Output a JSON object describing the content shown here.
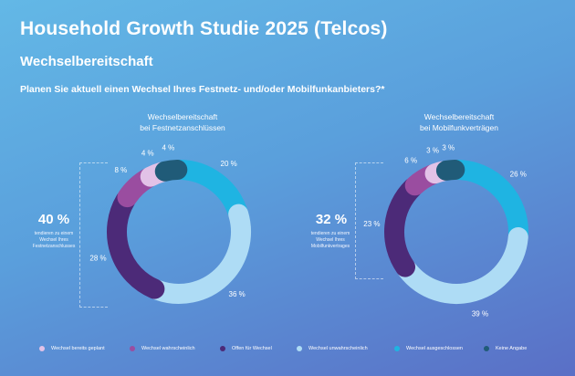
{
  "header": {
    "title": "Household Growth Studie 2025 (Telcos)",
    "subtitle": "Wechselbereitschaft",
    "question": "Planen Sie aktuell einen Wechsel Ihres Festnetz- und/oder Mobilfunkanbieters?*"
  },
  "colors": {
    "Wechsel bereits geplant": "#e2c2e7",
    "Wechsel wahrscheinlich": "#9a4da0",
    "Offen für Wechsel": "#4c2a78",
    "Wechsel unwahrscheinlich": "#aedcf5",
    "Wechsel ausgeschlossen": "#1fb4e2",
    "Keine Angabe": "#205b78"
  },
  "legend": [
    {
      "label": "Wechsel bereits geplant",
      "color": "#e2c2e7"
    },
    {
      "label": "Wechsel wahrscheinlich",
      "color": "#9a4da0"
    },
    {
      "label": "Offen für Wechsel",
      "color": "#4c2a78"
    },
    {
      "label": "Wechsel unwahrscheinlich",
      "color": "#aedcf5"
    },
    {
      "label": "Wechsel ausgeschlossen",
      "color": "#1fb4e2"
    },
    {
      "label": "Keine Angabe",
      "color": "#205b78"
    }
  ],
  "charts": {
    "left": {
      "title_lines": [
        "Wechselbereitschaft",
        "bei Festnetzanschlüssen"
      ],
      "highlight": "40 %",
      "caption_lines": [
        "tendieren zu einem",
        "Wechsel Ihres",
        "Festnetzanschlusses"
      ]
    },
    "right": {
      "title_lines": [
        "Wechselbereitschaft",
        "bei Mobilfunkverträgen"
      ],
      "highlight": "32 %",
      "caption_lines": [
        "tendieren zu einem",
        "Wechsel Ihres",
        "Mobilfunkvertrages"
      ]
    }
  },
  "chart_data": [
    {
      "type": "pie",
      "title": "Wechselbereitschaft bei Festnetzanschlüssen",
      "categories": [
        "Wechsel ausgeschlossen",
        "Wechsel unwahrscheinlich",
        "Offen für Wechsel",
        "Wechsel wahrscheinlich",
        "Wechsel bereits geplant",
        "Keine Angabe"
      ],
      "values": [
        20,
        36,
        28,
        8,
        4,
        4
      ],
      "labels": [
        "20 %",
        "36 %",
        "28 %",
        "8 %",
        "4 %",
        "4 %"
      ]
    },
    {
      "type": "pie",
      "title": "Wechselbereitschaft bei Mobilfunkverträgen",
      "categories": [
        "Wechsel ausgeschlossen",
        "Wechsel unwahrscheinlich",
        "Offen für Wechsel",
        "Wechsel wahrscheinlich",
        "Wechsel bereits geplant",
        "Keine Angabe"
      ],
      "values": [
        26,
        39,
        23,
        6,
        3,
        3
      ],
      "labels": [
        "26 %",
        "39 %",
        "23 %",
        "6 %",
        "3 %",
        "3 %"
      ]
    }
  ]
}
